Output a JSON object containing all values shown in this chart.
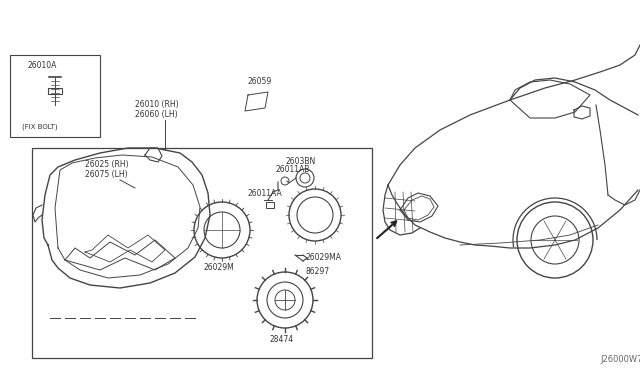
{
  "bg_color": "#ffffff",
  "line_color": "#444444",
  "text_color": "#333333",
  "fig_width": 6.4,
  "fig_height": 3.72,
  "dpi": 100,
  "watermark": "J26000W7",
  "labels": {
    "fix_bolt_part": "26010A",
    "fix_bolt_text": "(FIX BOLT)",
    "part_26010": "26010 (RH)",
    "part_26060": "26060 (LH)",
    "part_26059": "26059",
    "part_26025": "26025 (RH)",
    "part_26075": "26075 (LH)",
    "part_26011AA": "26011AA",
    "part_26011AB": "26011AB",
    "part_2603BN": "2603BN",
    "part_26029M": "26029M",
    "part_26129MA": "26029MA",
    "part_86297": "86297",
    "part_28474": "28474"
  }
}
